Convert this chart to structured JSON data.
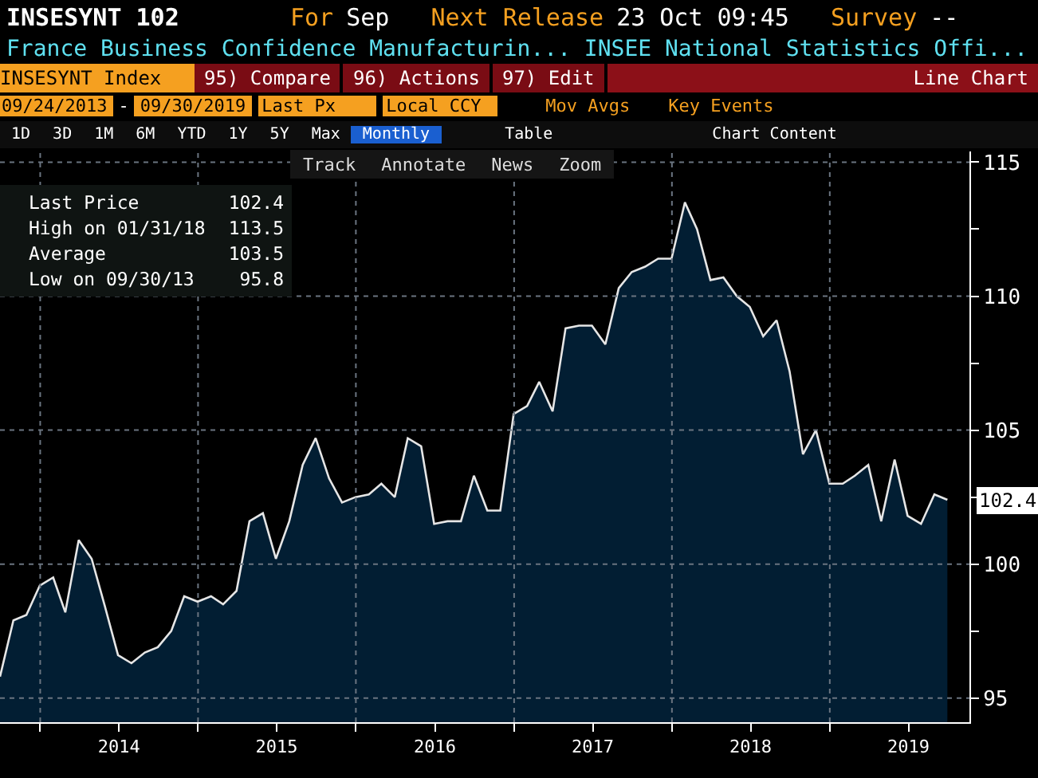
{
  "chart_data": {
    "type": "area",
    "title": "INSESYNT 102",
    "subtitle": "France Business Confidence Manufacturin... INSEE National Statistics Offi...",
    "annotations": [
      "For",
      "Sep",
      "Next Release",
      "23 Oct 09:45",
      "Survey",
      "--",
      "INSESYNT Index",
      "95) Compare",
      "96) Actions",
      "97) Edit",
      "Line Chart",
      "09/24/2013",
      "-",
      "09/30/2019",
      "Last Px",
      "Local CCY",
      "Mov Avgs",
      "Key Events",
      "1D",
      "3D",
      "1M",
      "6M",
      "YTD",
      "1Y",
      "5Y",
      "Max",
      "Monthly",
      "Table",
      "Chart Content",
      "Track",
      "Annotate",
      "News",
      "Zoom",
      "Last Price",
      "102.4",
      "High on 01/31/18",
      "113.5",
      "Average",
      "103.5",
      "Low on 09/30/13",
      "95.8"
    ],
    "x": [
      "2013-09-30",
      "2013-10-31",
      "2013-11-30",
      "2013-12-31",
      "2014-01-31",
      "2014-02-28",
      "2014-03-31",
      "2014-04-30",
      "2014-05-31",
      "2014-06-30",
      "2014-07-31",
      "2014-08-31",
      "2014-09-30",
      "2014-10-31",
      "2014-11-30",
      "2014-12-31",
      "2015-01-31",
      "2015-02-28",
      "2015-03-31",
      "2015-04-30",
      "2015-05-31",
      "2015-06-30",
      "2015-07-31",
      "2015-08-31",
      "2015-09-30",
      "2015-10-31",
      "2015-11-30",
      "2015-12-31",
      "2016-01-31",
      "2016-02-29",
      "2016-03-31",
      "2016-04-30",
      "2016-05-31",
      "2016-06-30",
      "2016-07-31",
      "2016-08-31",
      "2016-09-30",
      "2016-10-31",
      "2016-11-30",
      "2016-12-31",
      "2017-01-31",
      "2017-02-28",
      "2017-03-31",
      "2017-04-30",
      "2017-05-31",
      "2017-06-30",
      "2017-07-31",
      "2017-08-31",
      "2017-09-30",
      "2017-10-31",
      "2017-11-30",
      "2017-12-31",
      "2018-01-31",
      "2018-02-28",
      "2018-03-31",
      "2018-04-30",
      "2018-05-31",
      "2018-06-30",
      "2018-07-31",
      "2018-08-31",
      "2018-09-30",
      "2018-10-31",
      "2018-11-30",
      "2018-12-31",
      "2019-01-31",
      "2019-02-28",
      "2019-03-31",
      "2019-04-30",
      "2019-05-31",
      "2019-06-30",
      "2019-07-31",
      "2019-08-31",
      "2019-09-30"
    ],
    "series": [
      {
        "color": "#021e33",
        "values": [
          95.8,
          97.9,
          98.1,
          99.2,
          99.5,
          98.2,
          100.9,
          100.2,
          98.4,
          96.6,
          96.3,
          96.7,
          96.9,
          97.5,
          98.8,
          98.6,
          98.8,
          98.5,
          99.0,
          101.6,
          101.9,
          100.2,
          101.6,
          103.7,
          104.7,
          103.2,
          102.3,
          102.5,
          102.6,
          103.0,
          102.5,
          104.7,
          104.4,
          101.5,
          101.6,
          101.6,
          103.3,
          102.0,
          102.0,
          105.6,
          105.9,
          106.8,
          105.7,
          108.8,
          108.9,
          108.9,
          108.2,
          110.3,
          110.9,
          111.1,
          111.4,
          111.4,
          113.5,
          112.5,
          110.6,
          110.7,
          110.0,
          109.6,
          108.5,
          109.1,
          107.2,
          104.1,
          105.0,
          103.0,
          103.0,
          103.3,
          103.7,
          101.6,
          103.9,
          101.8,
          101.5,
          102.6,
          102.4
        ],
        "value_labels": [
          null,
          null,
          null,
          null,
          null,
          null,
          null,
          null,
          null,
          null,
          null,
          null,
          null,
          null,
          null,
          null,
          null,
          null,
          null,
          null,
          null,
          null,
          null,
          null,
          null,
          null,
          null,
          null,
          null,
          null,
          null,
          null,
          null,
          null,
          null,
          null,
          null,
          null,
          null,
          null,
          null,
          null,
          null,
          null,
          null,
          null,
          null,
          null,
          null,
          null,
          null,
          null,
          null,
          null,
          null,
          null,
          null,
          null,
          null,
          null,
          null,
          null,
          null,
          null,
          null,
          null,
          null,
          null,
          null,
          null,
          null,
          null,
          "102.4"
        ]
      }
    ],
    "xlim": [
      "2013-09-30",
      "2019-11-20"
    ],
    "xticks": [
      {
        "value": "2014-01-01",
        "label": null
      },
      {
        "value": "2014-07-02",
        "label": "2014"
      },
      {
        "value": "2015-01-01",
        "label": null
      },
      {
        "value": "2015-07-02",
        "label": "2015"
      },
      {
        "value": "2016-01-01",
        "label": null
      },
      {
        "value": "2016-07-02",
        "label": "2016"
      },
      {
        "value": "2017-01-01",
        "label": null
      },
      {
        "value": "2017-07-02",
        "label": "2017"
      },
      {
        "value": "2018-01-01",
        "label": null
      },
      {
        "value": "2018-07-02",
        "label": "2018"
      },
      {
        "value": "2019-01-01",
        "label": null
      },
      {
        "value": "2019-07-02",
        "label": "2019"
      }
    ],
    "ylim": [
      94.1,
      115.4
    ],
    "yticks": [
      95,
      {
        "value": 97.5,
        "label": null
      },
      100,
      {
        "value": 102.5,
        "label": null
      },
      105,
      {
        "value": 107.5,
        "label": null
      },
      110,
      {
        "value": 112.5,
        "label": null
      },
      115
    ],
    "grid": true,
    "line_style": "solid",
    "marker": "none"
  }
}
